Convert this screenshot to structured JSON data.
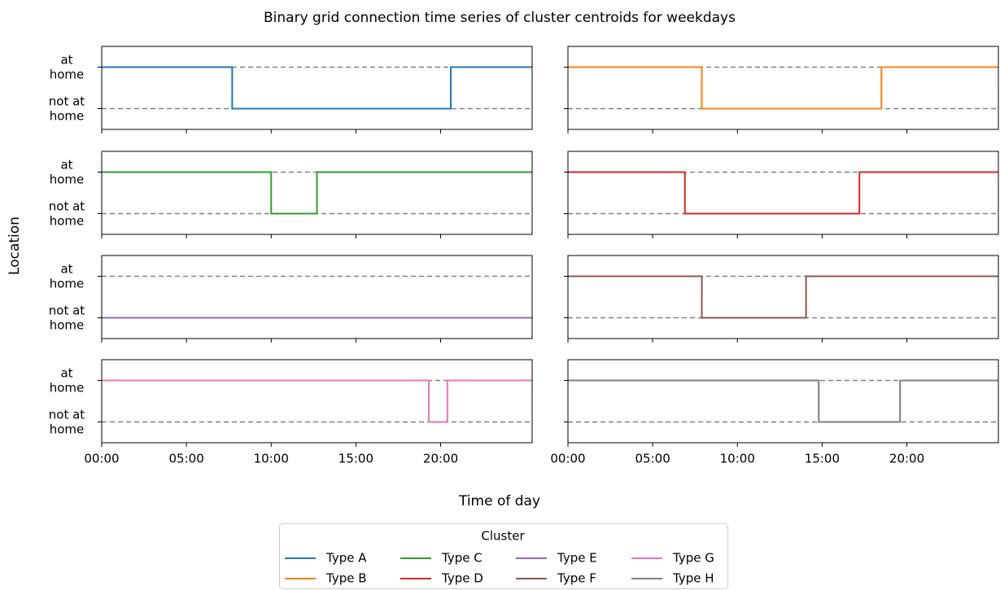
{
  "figure": {
    "title": "Binary grid connection time series of cluster centroids for weekdays",
    "x_label": "Time of day",
    "y_label": "Location",
    "legend_title": "Cluster",
    "legend_position": "lower center",
    "legend_columns": 4
  },
  "chart_data": [
    {
      "type": "step",
      "series": [
        {
          "name": "Type A",
          "color": "#1f77b4",
          "x": [
            0,
            7.7,
            7.7,
            20.6,
            20.6,
            25.4
          ],
          "values": [
            1,
            1,
            0,
            0,
            1,
            1
          ]
        }
      ],
      "xlim": [
        0,
        25.4
      ],
      "ylim": [
        -0.5,
        1.5
      ],
      "xticks": [
        0,
        5,
        10,
        15,
        20
      ],
      "yticks": [
        {
          "value": 0,
          "label": "not at\nhome"
        },
        {
          "value": 1,
          "label": "at\nhome"
        }
      ],
      "grid": true
    },
    {
      "type": "step",
      "series": [
        {
          "name": "Type B",
          "color": "#ff7f0e",
          "x": [
            0,
            7.9,
            7.9,
            18.5,
            18.5,
            25.4
          ],
          "values": [
            1,
            1,
            0,
            0,
            1,
            1
          ]
        }
      ],
      "xlim": [
        0,
        25.4
      ],
      "ylim": [
        -0.5,
        1.5
      ],
      "xticks": [
        0,
        5,
        10,
        15,
        20
      ],
      "yticks": [
        0,
        1
      ],
      "grid": true
    },
    {
      "type": "step",
      "series": [
        {
          "name": "Type C",
          "color": "#2ca02c",
          "x": [
            0,
            10.0,
            10.0,
            12.7,
            12.7,
            25.4
          ],
          "values": [
            1,
            1,
            0,
            0,
            1,
            1
          ]
        }
      ],
      "xlim": [
        0,
        25.4
      ],
      "ylim": [
        -0.5,
        1.5
      ],
      "xticks": [
        0,
        5,
        10,
        15,
        20
      ],
      "yticks": [
        {
          "value": 0,
          "label": "not at\nhome"
        },
        {
          "value": 1,
          "label": "at\nhome"
        }
      ],
      "grid": true
    },
    {
      "type": "step",
      "series": [
        {
          "name": "Type D",
          "color": "#d62728",
          "x": [
            0,
            6.9,
            6.9,
            17.2,
            17.2,
            25.4
          ],
          "values": [
            1,
            1,
            0,
            0,
            1,
            1
          ]
        }
      ],
      "xlim": [
        0,
        25.4
      ],
      "ylim": [
        -0.5,
        1.5
      ],
      "xticks": [
        0,
        5,
        10,
        15,
        20
      ],
      "yticks": [
        0,
        1
      ],
      "grid": true
    },
    {
      "type": "step",
      "series": [
        {
          "name": "Type E",
          "color": "#9467bd",
          "x": [
            0,
            25.4
          ],
          "values": [
            0,
            0
          ]
        }
      ],
      "xlim": [
        0,
        25.4
      ],
      "ylim": [
        -0.5,
        1.5
      ],
      "xticks": [
        0,
        5,
        10,
        15,
        20
      ],
      "yticks": [
        {
          "value": 0,
          "label": "not at\nhome"
        },
        {
          "value": 1,
          "label": "at\nhome"
        }
      ],
      "grid": true
    },
    {
      "type": "step",
      "series": [
        {
          "name": "Type F",
          "color": "#8c564b",
          "x": [
            0,
            7.9,
            7.9,
            14.05,
            14.05,
            25.4
          ],
          "values": [
            1,
            1,
            0,
            0,
            1,
            1
          ]
        }
      ],
      "xlim": [
        0,
        25.4
      ],
      "ylim": [
        -0.5,
        1.5
      ],
      "xticks": [
        0,
        5,
        10,
        15,
        20
      ],
      "yticks": [
        0,
        1
      ],
      "grid": true
    },
    {
      "type": "step",
      "series": [
        {
          "name": "Type G",
          "color": "#e377c2",
          "x": [
            0,
            19.3,
            19.3,
            20.4,
            20.4,
            25.4
          ],
          "values": [
            1,
            1,
            0,
            0,
            1,
            1
          ]
        }
      ],
      "xlim": [
        0,
        25.4
      ],
      "ylim": [
        -0.5,
        1.5
      ],
      "xticks": [
        {
          "value": 0,
          "label": "00:00"
        },
        {
          "value": 5,
          "label": "05:00"
        },
        {
          "value": 10,
          "label": "10:00"
        },
        {
          "value": 15,
          "label": "15:00"
        },
        {
          "value": 20,
          "label": "20:00"
        }
      ],
      "yticks": [
        {
          "value": 0,
          "label": "not at\nhome"
        },
        {
          "value": 1,
          "label": "at\nhome"
        }
      ],
      "grid": true
    },
    {
      "type": "step",
      "series": [
        {
          "name": "Type H",
          "color": "#7f7f7f",
          "x": [
            0,
            14.8,
            14.8,
            19.6,
            19.6,
            25.4
          ],
          "values": [
            1,
            1,
            0,
            0,
            1,
            1
          ]
        }
      ],
      "xlim": [
        0,
        25.4
      ],
      "ylim": [
        -0.5,
        1.5
      ],
      "xticks": [
        {
          "value": 0,
          "label": "00:00"
        },
        {
          "value": 5,
          "label": "05:00"
        },
        {
          "value": 10,
          "label": "10:00"
        },
        {
          "value": 15,
          "label": "15:00"
        },
        {
          "value": 20,
          "label": "20:00"
        }
      ],
      "yticks": [
        0,
        1
      ],
      "grid": true
    }
  ]
}
